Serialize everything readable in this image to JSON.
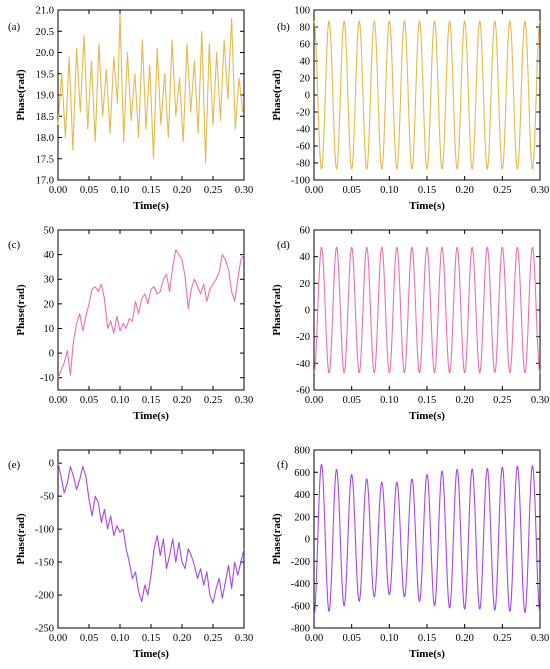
{
  "chart_data": [
    {
      "type": "line",
      "panel_label": "(a)",
      "xlabel": "Time(s)",
      "ylabel": "Phase(rad)",
      "xlim": [
        0,
        0.3
      ],
      "ylim": [
        17.0,
        21.0
      ],
      "xticks": [
        "0.00",
        "0.05",
        "0.10",
        "0.15",
        "0.20",
        "0.25",
        "0.30"
      ],
      "yticks": [
        "17.0",
        "17.5",
        "18.0",
        "18.5",
        "19.0",
        "19.5",
        "20.0",
        "20.5",
        "21.0"
      ],
      "series": [
        {
          "color": "#e8b84b",
          "x": [
            0.0,
            0.006,
            0.012,
            0.018,
            0.024,
            0.03,
            0.036,
            0.042,
            0.048,
            0.054,
            0.06,
            0.066,
            0.072,
            0.078,
            0.084,
            0.09,
            0.096,
            0.1,
            0.106,
            0.112,
            0.118,
            0.124,
            0.13,
            0.136,
            0.142,
            0.148,
            0.154,
            0.16,
            0.166,
            0.172,
            0.178,
            0.184,
            0.19,
            0.196,
            0.202,
            0.208,
            0.214,
            0.22,
            0.226,
            0.232,
            0.238,
            0.244,
            0.25,
            0.256,
            0.262,
            0.268,
            0.274,
            0.28,
            0.286,
            0.292,
            0.298
          ],
          "y": [
            18.3,
            19.5,
            18.0,
            19.9,
            17.7,
            20.1,
            18.6,
            20.4,
            18.2,
            19.8,
            17.9,
            20.2,
            18.5,
            19.6,
            18.1,
            19.9,
            18.8,
            20.9,
            17.9,
            20.0,
            18.4,
            19.5,
            18.0,
            20.3,
            18.2,
            19.7,
            17.5,
            20.1,
            18.3,
            19.5,
            18.0,
            20.3,
            18.5,
            19.4,
            17.9,
            20.2,
            18.6,
            19.8,
            18.1,
            20.5,
            17.4,
            20.2,
            18.3,
            20.0,
            18.4,
            20.3,
            18.9,
            20.8,
            18.2,
            19.4,
            18.6
          ]
        }
      ]
    },
    {
      "type": "line",
      "panel_label": "(b)",
      "xlabel": "Time(s)",
      "ylabel": "Phase(rad)",
      "xlim": [
        0,
        0.3
      ],
      "ylim": [
        -100,
        100
      ],
      "xticks": [
        "0.00",
        "0.05",
        "0.10",
        "0.15",
        "0.20",
        "0.25",
        "0.30"
      ],
      "yticks": [
        "-100",
        "-80",
        "-60",
        "-40",
        "-20",
        "0",
        "20",
        "40",
        "60",
        "80",
        "100"
      ],
      "series": [
        {
          "color": "#e8b84b",
          "amplitude": 87,
          "offset": 0,
          "cycles": 15,
          "phase_deg": 0
        }
      ]
    },
    {
      "type": "line",
      "panel_label": "(c)",
      "xlabel": "Time(s)",
      "ylabel": "Phase(rad)",
      "xlim": [
        0,
        0.3
      ],
      "ylim": [
        -15,
        50
      ],
      "xticks": [
        "0.00",
        "0.05",
        "0.10",
        "0.15",
        "0.20",
        "0.25",
        "0.30"
      ],
      "yticks": [
        "-10",
        "0",
        "10",
        "20",
        "30",
        "40",
        "50"
      ],
      "series": [
        {
          "color": "#f06eb4",
          "x": [
            0.0,
            0.005,
            0.01,
            0.015,
            0.02,
            0.025,
            0.03,
            0.035,
            0.04,
            0.045,
            0.05,
            0.055,
            0.06,
            0.065,
            0.07,
            0.075,
            0.08,
            0.085,
            0.09,
            0.095,
            0.1,
            0.105,
            0.11,
            0.115,
            0.12,
            0.125,
            0.13,
            0.135,
            0.14,
            0.145,
            0.15,
            0.155,
            0.16,
            0.165,
            0.17,
            0.175,
            0.18,
            0.185,
            0.19,
            0.195,
            0.2,
            0.205,
            0.21,
            0.215,
            0.22,
            0.225,
            0.23,
            0.235,
            0.24,
            0.245,
            0.25,
            0.255,
            0.26,
            0.265,
            0.27,
            0.275,
            0.28,
            0.285,
            0.29,
            0.295,
            0.3
          ],
          "y": [
            -10,
            -7,
            -4,
            1,
            -9,
            5,
            12,
            16,
            9,
            15,
            20,
            26,
            27,
            25,
            28,
            22,
            10,
            13,
            8,
            15,
            9,
            12,
            10,
            14,
            13,
            21,
            16,
            22,
            24,
            20,
            26,
            27,
            24,
            25,
            30,
            32,
            25,
            35,
            42,
            40,
            38,
            31,
            18,
            26,
            30,
            27,
            24,
            28,
            21,
            26,
            28,
            30,
            33,
            40,
            38,
            34,
            25,
            21,
            30,
            38,
            40
          ]
        }
      ]
    },
    {
      "type": "line",
      "panel_label": "(d)",
      "xlabel": "Time(s)",
      "ylabel": "Phase(rad)",
      "xlim": [
        0,
        0.3
      ],
      "ylim": [
        -60,
        60
      ],
      "xticks": [
        "0.00",
        "0.05",
        "0.10",
        "0.15",
        "0.20",
        "0.25",
        "0.30"
      ],
      "yticks": [
        "-60",
        "-40",
        "-20",
        "0",
        "20",
        "40",
        "60"
      ],
      "series": [
        {
          "color": "#f06eb4",
          "amplitude": 47,
          "offset": 0,
          "cycles": 15,
          "phase_deg": 180
        }
      ]
    },
    {
      "type": "line",
      "panel_label": "(e)",
      "xlabel": "Time(s)",
      "ylabel": "Phase(rad)",
      "xlim": [
        0,
        0.3
      ],
      "ylim": [
        -250,
        20
      ],
      "xticks": [
        "0.00",
        "0.05",
        "0.10",
        "0.15",
        "0.20",
        "0.25",
        "0.30"
      ],
      "yticks": [
        "-250",
        "-200",
        "-150",
        "-100",
        "-50",
        "0"
      ],
      "series": [
        {
          "color": "#a745f0",
          "x": [
            0.0,
            0.005,
            0.01,
            0.015,
            0.02,
            0.025,
            0.03,
            0.035,
            0.04,
            0.045,
            0.05,
            0.055,
            0.06,
            0.065,
            0.07,
            0.075,
            0.08,
            0.085,
            0.09,
            0.095,
            0.1,
            0.105,
            0.11,
            0.115,
            0.12,
            0.125,
            0.13,
            0.135,
            0.14,
            0.145,
            0.15,
            0.155,
            0.16,
            0.165,
            0.17,
            0.175,
            0.18,
            0.185,
            0.19,
            0.195,
            0.2,
            0.205,
            0.21,
            0.215,
            0.22,
            0.225,
            0.23,
            0.235,
            0.24,
            0.245,
            0.25,
            0.255,
            0.26,
            0.265,
            0.27,
            0.275,
            0.28,
            0.285,
            0.29,
            0.295,
            0.3
          ],
          "y": [
            0,
            -20,
            -45,
            -30,
            -5,
            -20,
            -40,
            -25,
            -5,
            -20,
            -55,
            -80,
            -50,
            -60,
            -90,
            -70,
            -100,
            -80,
            -110,
            -95,
            -105,
            -100,
            -130,
            -150,
            -175,
            -165,
            -195,
            -210,
            -185,
            -200,
            -170,
            -130,
            -110,
            -140,
            -115,
            -160,
            -140,
            -115,
            -150,
            -120,
            -150,
            -160,
            -130,
            -140,
            -155,
            -175,
            -160,
            -185,
            -165,
            -200,
            -212,
            -190,
            -175,
            -205,
            -180,
            -155,
            -190,
            -150,
            -170,
            -150,
            -130
          ]
        }
      ]
    },
    {
      "type": "line",
      "panel_label": "(f)",
      "xlabel": "Time(s)",
      "ylabel": "Phase(rad)",
      "xlim": [
        0,
        0.3
      ],
      "ylim": [
        -800,
        800
      ],
      "xticks": [
        "0.00",
        "0.05",
        "0.10",
        "0.15",
        "0.20",
        "0.25",
        "0.30"
      ],
      "yticks": [
        "-800",
        "-600",
        "-400",
        "-200",
        "0",
        "200",
        "400",
        "600",
        "800"
      ],
      "series": [
        {
          "color": "#a745f0",
          "amplitude_envelope": [
            690,
            650,
            600,
            560,
            520,
            500,
            520,
            560,
            600,
            620,
            630,
            630,
            640,
            650,
            660
          ],
          "offset": 0,
          "cycles": 15,
          "phase_deg": 180
        }
      ]
    }
  ]
}
